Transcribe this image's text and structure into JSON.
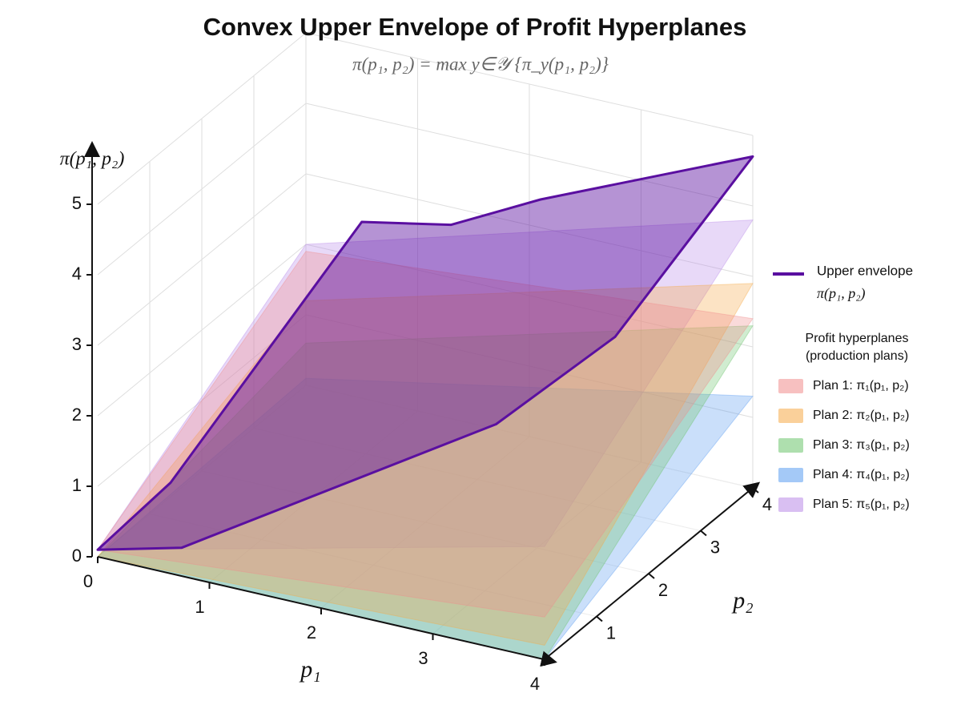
{
  "chart_data": {
    "type": "surface3d",
    "title": "Convex Upper Envelope of Profit Hyperplanes",
    "subtitle": "π(p₁, p₂) = max y∈𝒴 {π_y(p₁, p₂)}",
    "xlabel": "p₁",
    "ylabel": "p₂",
    "zlabel": "π(p₁, p₂)",
    "xlim": [
      0,
      4
    ],
    "ylim": [
      0,
      4
    ],
    "zlim": [
      0,
      5
    ],
    "xticks": [
      0,
      1,
      2,
      3,
      4
    ],
    "yticks": [
      1,
      2,
      3,
      4
    ],
    "zticks": [
      0,
      1,
      2,
      3,
      4,
      5
    ],
    "grid": true,
    "legend_title": [
      "Profit hyperplanes",
      "(production plans)"
    ],
    "envelope": {
      "name": [
        "Upper envelope",
        "π(p₁, p₂)"
      ],
      "color": "#5a0fa0",
      "x": [
        0,
        0,
        0.5,
        1.3,
        2.1,
        4,
        3.7,
        3.1,
        0.75
      ],
      "y": [
        0,
        1.4,
        4,
        4,
        4,
        4,
        2,
        1,
        0
      ],
      "z": [
        0.1,
        0.2,
        2.5,
        2.75,
        3.4,
        4.7,
        3.25,
        2.4,
        0.4
      ]
    },
    "series": [
      {
        "name": "Plan 1:  π₁(p₁, p₂)",
        "color": "#f08c8c",
        "x": [
          0,
          4,
          4,
          0
        ],
        "y": [
          0,
          0,
          4,
          4
        ],
        "z": [
          0.1,
          0.6,
          2.4,
          1.9
        ]
      },
      {
        "name": "Plan 2:  π₂(p₁, p₂)",
        "color": "#f5a947",
        "x": [
          0,
          4,
          4,
          0
        ],
        "y": [
          0,
          0,
          4,
          4
        ],
        "z": [
          0,
          0.2,
          2.9,
          1.2
        ]
      },
      {
        "name": "Plan 3:  π₃(p₁, p₂)",
        "color": "#6cc46c",
        "x": [
          0,
          4,
          4,
          0
        ],
        "y": [
          0,
          0,
          4,
          4
        ],
        "z": [
          0,
          0,
          2.3,
          0.6
        ]
      },
      {
        "name": "Plan 4:  π₄(p₁, p₂)",
        "color": "#5a9cf0",
        "x": [
          0,
          4,
          4,
          0
        ],
        "y": [
          0,
          0,
          4,
          4
        ],
        "z": [
          0,
          0,
          1.3,
          0.1
        ]
      },
      {
        "name": "Plan 5:  π₅(p₁, p₂)",
        "color": "#b98ae8",
        "x": [
          0,
          4,
          4,
          0
        ],
        "y": [
          0,
          0,
          4,
          4
        ],
        "z": [
          0.1,
          1.6,
          3.8,
          2
        ]
      }
    ]
  }
}
